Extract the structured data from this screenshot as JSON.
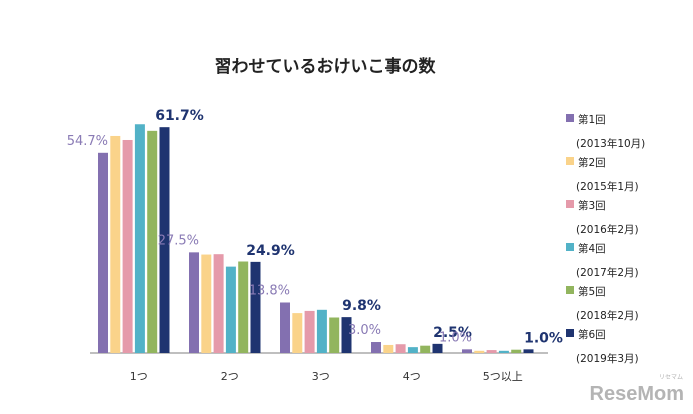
{
  "chart_data": {
    "type": "bar",
    "title": "習わせているおけいこ事の数",
    "categories": [
      "1つ",
      "2つ",
      "3つ",
      "4つ",
      "5つ以上"
    ],
    "series": [
      {
        "name": "第1回",
        "period": "(2013年10月)",
        "color": "#8370b0",
        "values": [
          54.7,
          27.5,
          13.8,
          3.0,
          1.0
        ]
      },
      {
        "name": "第2回",
        "period": "(2015年1月)",
        "color": "#fad38a",
        "values": [
          59.3,
          26.9,
          10.9,
          2.2,
          0.6
        ]
      },
      {
        "name": "第3回",
        "period": "(2016年2月)",
        "color": "#e59aaa",
        "values": [
          58.2,
          27.0,
          11.5,
          2.4,
          0.8
        ]
      },
      {
        "name": "第4回",
        "period": "(2017年2月)",
        "color": "#52b2c7",
        "values": [
          62.5,
          23.6,
          11.8,
          1.6,
          0.6
        ]
      },
      {
        "name": "第5回",
        "period": "(2018年2月)",
        "color": "#92b55e",
        "values": [
          60.7,
          25.0,
          9.7,
          2.0,
          0.9
        ]
      },
      {
        "name": "第6回",
        "period": "(2019年3月)",
        "color": "#1f3470",
        "values": [
          61.7,
          24.9,
          9.8,
          2.5,
          1.0
        ]
      }
    ],
    "data_labels": {
      "first_series": [
        "54.7%",
        "27.5%",
        "13.8%",
        "3.0%",
        "1.0%"
      ],
      "last_series": [
        "61.7%",
        "24.9%",
        "9.8%",
        "2.5%",
        "1.0%"
      ]
    },
    "ylim": [
      0,
      70
    ],
    "grid": false,
    "legend_position": "right"
  },
  "watermark": {
    "main": "ReseMom",
    "sub": "リセマム"
  }
}
